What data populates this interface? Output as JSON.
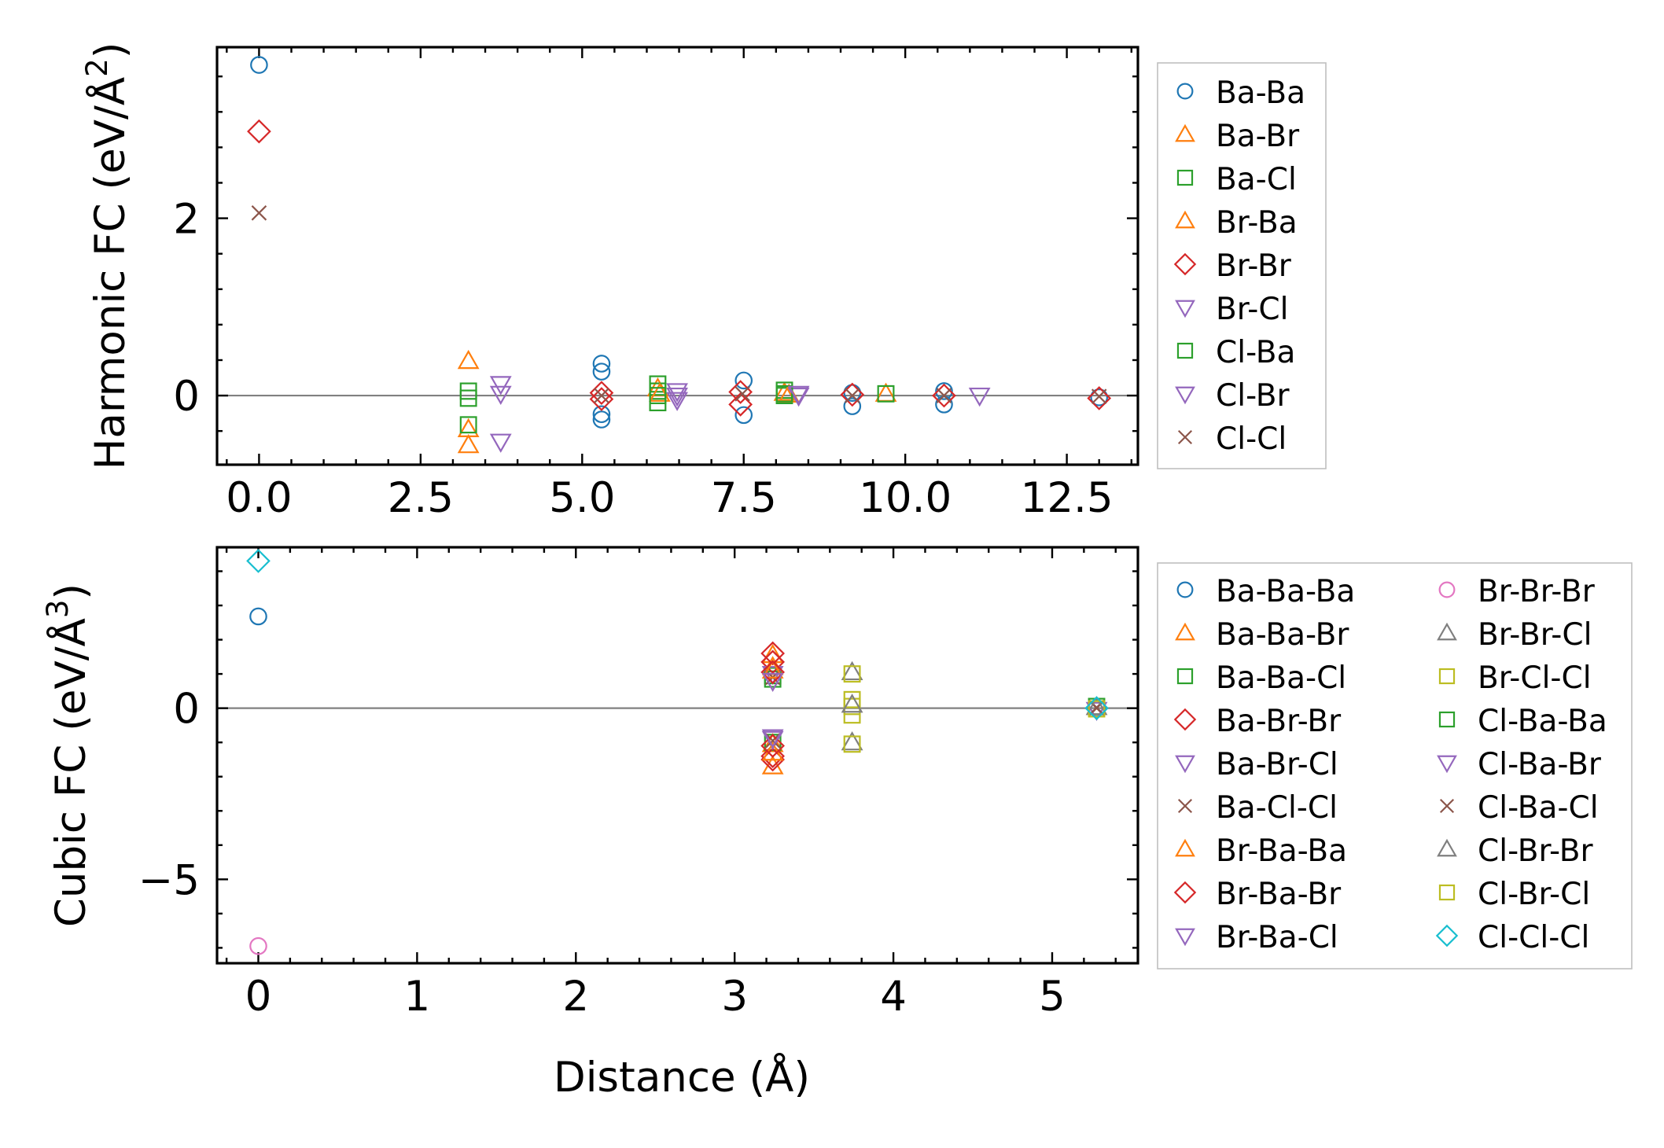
{
  "chart_data": [
    {
      "type": "scatter",
      "id": "harmonic",
      "ylabel": "Harmonic FC (eV/Å²)",
      "ylabel_parts": [
        "Harmonic FC (eV/Å",
        "2",
        ")"
      ],
      "xlabel": "",
      "xlim": [
        -0.65,
        13.6
      ],
      "ylim": [
        -0.78,
        3.93
      ],
      "xticks": [
        0.0,
        2.5,
        5.0,
        7.5,
        10.0,
        12.5
      ],
      "xtick_labels": [
        "0.0",
        "2.5",
        "5.0",
        "7.5",
        "10.0",
        "12.5"
      ],
      "xminor_step": 0.5,
      "yticks": [
        0,
        2
      ],
      "ytick_labels": [
        "0",
        "2"
      ],
      "yminor_step": 0.4,
      "zero_line": true,
      "legend_columns": 1,
      "series": [
        {
          "name": "Ba-Ba",
          "marker": "circle",
          "color": "#1f77b4",
          "points": [
            [
              0,
              3.73
            ],
            [
              5.3,
              0.36
            ],
            [
              5.3,
              0.27
            ],
            [
              5.3,
              -0.21
            ],
            [
              5.3,
              -0.27
            ],
            [
              7.5,
              0.17
            ],
            [
              7.5,
              -0.22
            ],
            [
              9.18,
              0.03
            ],
            [
              9.18,
              -0.12
            ],
            [
              10.6,
              0.05
            ],
            [
              10.6,
              -0.1
            ],
            [
              13.0,
              -0.02
            ]
          ]
        },
        {
          "name": "Ba-Br",
          "marker": "triangle-up",
          "color": "#ff7f0e",
          "points": [
            [
              3.24,
              0.39
            ],
            [
              3.24,
              -0.38
            ],
            [
              3.24,
              -0.56
            ],
            [
              6.17,
              0.08
            ],
            [
              8.13,
              0.03
            ],
            [
              9.7,
              0.02
            ]
          ]
        },
        {
          "name": "Ba-Cl",
          "marker": "square",
          "color": "#2ca02c",
          "points": [
            [
              3.24,
              0.05
            ],
            [
              3.24,
              -0.03
            ],
            [
              3.24,
              -0.33
            ],
            [
              6.17,
              0.13
            ],
            [
              6.17,
              0.05
            ],
            [
              6.17,
              -0.08
            ],
            [
              8.13,
              0.06
            ],
            [
              8.13,
              0.0
            ],
            [
              9.7,
              0.02
            ]
          ]
        },
        {
          "name": "Br-Ba",
          "marker": "triangle-up",
          "color": "#ff7f0e",
          "points": [
            [
              6.2,
              0.02
            ],
            [
              8.2,
              0.01
            ]
          ]
        },
        {
          "name": "Br-Br",
          "marker": "diamond",
          "color": "#d62728",
          "points": [
            [
              0,
              2.98
            ],
            [
              5.3,
              0.03
            ],
            [
              5.3,
              -0.04
            ],
            [
              7.45,
              0.04
            ],
            [
              7.45,
              -0.1
            ],
            [
              9.18,
              0.01
            ],
            [
              10.6,
              0.0
            ],
            [
              13.0,
              -0.03
            ]
          ]
        },
        {
          "name": "Br-Cl",
          "marker": "triangle-down",
          "color": "#9467bd",
          "points": [
            [
              3.74,
              0.13
            ],
            [
              3.74,
              0.02
            ],
            [
              3.74,
              -0.52
            ],
            [
              6.47,
              0.05
            ],
            [
              6.47,
              -0.05
            ],
            [
              8.35,
              0.0
            ],
            [
              11.15,
              0.0
            ]
          ]
        },
        {
          "name": "Cl-Ba",
          "marker": "square",
          "color": "#2ca02c",
          "points": [
            [
              6.17,
              0.0
            ],
            [
              8.13,
              0.02
            ]
          ]
        },
        {
          "name": "Cl-Br",
          "marker": "triangle-down",
          "color": "#9467bd",
          "points": [
            [
              6.47,
              0.0
            ],
            [
              8.35,
              0.02
            ]
          ]
        },
        {
          "name": "Cl-Cl",
          "marker": "x",
          "color": "#8c564b",
          "points": [
            [
              0,
              2.06
            ],
            [
              5.3,
              0.0
            ],
            [
              7.48,
              0.02
            ],
            [
              9.18,
              0.0
            ],
            [
              10.6,
              0.0
            ],
            [
              13.0,
              -0.01
            ]
          ]
        }
      ]
    },
    {
      "type": "scatter",
      "id": "cubic",
      "ylabel": "Cubic FC (eV/Å³)",
      "ylabel_parts": [
        "Cubic FC (eV/Å",
        "3",
        ")"
      ],
      "xlabel": "Distance (Å)",
      "xlim": [
        -0.26,
        5.54
      ],
      "ylim": [
        -7.45,
        4.7
      ],
      "xticks": [
        0,
        1,
        2,
        3,
        4,
        5
      ],
      "xtick_labels": [
        "0",
        "1",
        "2",
        "3",
        "4",
        "5"
      ],
      "xminor_step": 0.2,
      "yticks": [
        -5,
        0
      ],
      "ytick_labels": [
        "−5",
        "0"
      ],
      "yminor_step": 1,
      "zero_line": true,
      "legend_columns": 2,
      "series": [
        {
          "name": "Ba-Ba-Ba",
          "marker": "circle",
          "color": "#1f77b4",
          "points": [
            [
              0,
              2.68
            ],
            [
              5.28,
              0.0
            ]
          ]
        },
        {
          "name": "Ba-Ba-Br",
          "marker": "triangle-up",
          "color": "#ff7f0e",
          "points": [
            [
              3.24,
              1.55
            ],
            [
              3.24,
              1.2
            ],
            [
              3.24,
              -1.05
            ],
            [
              3.24,
              -1.7
            ]
          ]
        },
        {
          "name": "Ba-Ba-Cl",
          "marker": "square",
          "color": "#2ca02c",
          "points": [
            [
              3.24,
              0.95
            ],
            [
              3.24,
              0.85
            ],
            [
              3.24,
              -1.0
            ]
          ]
        },
        {
          "name": "Ba-Br-Br",
          "marker": "diamond",
          "color": "#d62728",
          "points": [
            [
              3.24,
              1.6
            ],
            [
              3.24,
              1.35
            ],
            [
              3.24,
              -1.4
            ],
            [
              3.24,
              -1.5
            ]
          ]
        },
        {
          "name": "Ba-Br-Cl",
          "marker": "triangle-down",
          "color": "#9467bd",
          "points": [
            [
              3.24,
              1.0
            ],
            [
              3.24,
              -0.9
            ]
          ]
        },
        {
          "name": "Ba-Cl-Cl",
          "marker": "x",
          "color": "#8c564b",
          "points": [
            [
              3.24,
              0.9
            ],
            [
              3.24,
              -0.95
            ],
            [
              5.28,
              0.0
            ]
          ]
        },
        {
          "name": "Br-Ba-Ba",
          "marker": "triangle-up",
          "color": "#ff7f0e",
          "points": [
            [
              3.24,
              1.1
            ],
            [
              3.24,
              -1.3
            ]
          ]
        },
        {
          "name": "Br-Ba-Br",
          "marker": "diamond",
          "color": "#d62728",
          "points": [
            [
              3.24,
              1.05
            ],
            [
              3.24,
              -1.1
            ]
          ]
        },
        {
          "name": "Br-Ba-Cl",
          "marker": "triangle-down",
          "color": "#9467bd",
          "points": [
            [
              3.24,
              0.8
            ],
            [
              3.24,
              -0.85
            ]
          ]
        },
        {
          "name": "Br-Br-Br",
          "marker": "circle",
          "color": "#e377c2",
          "points": [
            [
              0,
              -6.95
            ]
          ]
        },
        {
          "name": "Br-Br-Cl",
          "marker": "triangle-up",
          "color": "#7f7f7f",
          "points": [
            [
              3.74,
              1.05
            ],
            [
              3.74,
              -1.0
            ]
          ]
        },
        {
          "name": "Br-Cl-Cl",
          "marker": "square",
          "color": "#bcbd22",
          "points": [
            [
              3.74,
              1.0
            ],
            [
              3.74,
              0.25
            ],
            [
              3.74,
              0.05
            ],
            [
              3.74,
              -0.2
            ],
            [
              3.74,
              -1.05
            ]
          ]
        },
        {
          "name": "Cl-Ba-Ba",
          "marker": "square",
          "color": "#2ca02c",
          "points": [
            [
              5.28,
              0.05
            ]
          ]
        },
        {
          "name": "Cl-Ba-Br",
          "marker": "triangle-down",
          "color": "#9467bd",
          "points": [
            [
              5.28,
              -0.05
            ]
          ]
        },
        {
          "name": "Cl-Ba-Cl",
          "marker": "x",
          "color": "#8c564b",
          "points": [
            [
              5.28,
              0.02
            ]
          ]
        },
        {
          "name": "Cl-Br-Br",
          "marker": "triangle-up",
          "color": "#7f7f7f",
          "points": [
            [
              5.28,
              0.03
            ],
            [
              3.74,
              0.1
            ]
          ]
        },
        {
          "name": "Cl-Br-Cl",
          "marker": "square",
          "color": "#bcbd22",
          "points": [
            [
              5.28,
              -0.02
            ]
          ]
        },
        {
          "name": "Cl-Cl-Cl",
          "marker": "diamond",
          "color": "#17becf",
          "points": [
            [
              0,
              4.3
            ],
            [
              5.28,
              0.0
            ]
          ]
        }
      ]
    }
  ]
}
